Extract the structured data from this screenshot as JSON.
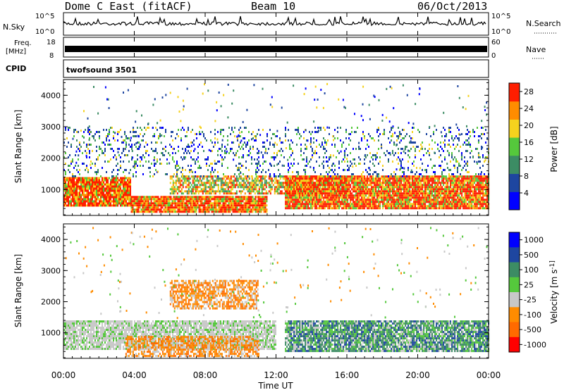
{
  "header": {
    "title": "Dome C East (fitACF)",
    "beam": "Beam 10",
    "date": "06/Oct/2013"
  },
  "status_panels": {
    "nsky_label": "N.Sky",
    "nsky_top": "10^5",
    "nsky_bottom": "10^0",
    "nsearch_label": "N.Search",
    "nsearch_top": "10^5",
    "nsearch_bottom": "10^0",
    "freq_label": "Freq.",
    "freq_unit": "[MHz]",
    "freq_top": "18",
    "freq_bottom": "8",
    "nave_label": "Nave",
    "nave_top": "60",
    "nave_bottom": "0",
    "cpid_label": "CPID",
    "cpid_value": "twofsound 3501"
  },
  "chart_data": [
    {
      "type": "heatmap",
      "panel": "power",
      "ylabel": "Slant Range [km]",
      "ylim": [
        180,
        4500
      ],
      "yticks": [
        "1000",
        "2000",
        "3000",
        "4000"
      ],
      "ytick_values": [
        1000,
        2000,
        3000,
        4000
      ],
      "xlim": [
        0,
        24
      ],
      "colorbar_label": "Power [dB]",
      "colorbar_ticks": [
        "4",
        "8",
        "12",
        "16",
        "20",
        "24",
        "28"
      ],
      "colorbar_tick_values": [
        4,
        8,
        12,
        16,
        20,
        24,
        28
      ],
      "colorbar_range": [
        0,
        30
      ],
      "colorbar_colors": [
        "#0000ff",
        "#1e46a0",
        "#3c8c64",
        "#55c83c",
        "#f5d21e",
        "#ff8c00",
        "#ff1e00"
      ],
      "echo_bands": [
        {
          "x": [
            0.0,
            3.8
          ],
          "y": [
            500,
            1400
          ],
          "level": "high"
        },
        {
          "x": [
            3.8,
            11.5
          ],
          "y": [
            300,
            800
          ],
          "level": "high"
        },
        {
          "x": [
            6.0,
            16.0
          ],
          "y": [
            900,
            1450
          ],
          "level": "mid"
        },
        {
          "x": [
            12.5,
            24.0
          ],
          "y": [
            400,
            1450
          ],
          "level": "high"
        },
        {
          "x": [
            0.0,
            24.0
          ],
          "y": [
            1400,
            3000
          ],
          "level": "sparse"
        }
      ]
    },
    {
      "type": "heatmap",
      "panel": "velocity",
      "ylabel": "Slant Range [km]",
      "ylim": [
        180,
        4500
      ],
      "yticks": [
        "1000",
        "2000",
        "3000",
        "4000"
      ],
      "ytick_values": [
        1000,
        2000,
        3000,
        4000
      ],
      "xlim": [
        0,
        24
      ],
      "xticks": [
        "00:00",
        "04:00",
        "08:00",
        "12:00",
        "16:00",
        "20:00",
        "00:00"
      ],
      "xtick_values": [
        0,
        4,
        8,
        12,
        16,
        20,
        24
      ],
      "xlabel": "Time UT",
      "colorbar_label": "Velocity [m s^-1]",
      "colorbar_ticks": [
        "1000",
        "500",
        "100",
        "25",
        "-25",
        "-100",
        "-500",
        "-1000"
      ],
      "colorbar_colors": [
        "#0000ff",
        "#1e46a0",
        "#3c8c64",
        "#55c83c",
        "#c8c8c8",
        "#ff8c00",
        "#ff6a00",
        "#ff0000"
      ],
      "echo_bands": [
        {
          "x": [
            0.0,
            12.0
          ],
          "y": [
            500,
            1400
          ],
          "level": "grey"
        },
        {
          "x": [
            3.5,
            11.0
          ],
          "y": [
            250,
            900
          ],
          "level": "orange"
        },
        {
          "x": [
            12.5,
            24.0
          ],
          "y": [
            400,
            1400
          ],
          "level": "green"
        },
        {
          "x": [
            6.0,
            11.0
          ],
          "y": [
            1800,
            2700
          ],
          "level": "orange"
        }
      ]
    }
  ]
}
